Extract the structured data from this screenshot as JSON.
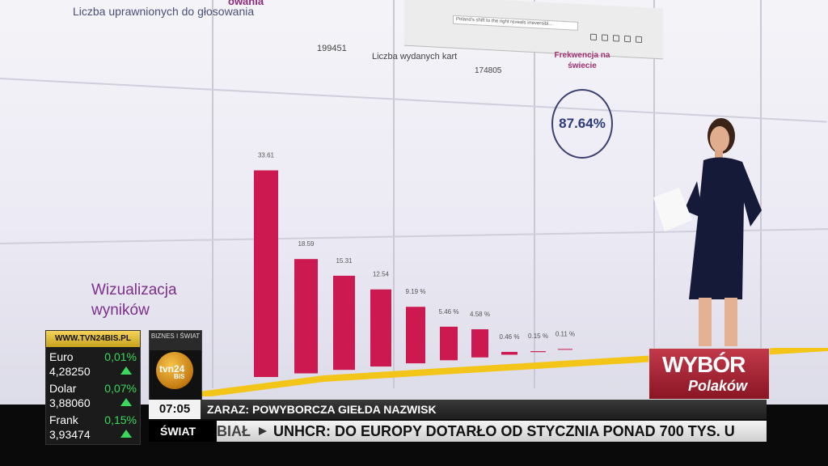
{
  "screen": {
    "header_fragment": "owania",
    "voters_label": "Liczba uprawnionych do głosowania",
    "voters_value": "199451",
    "ballots_label": "Liczba wydanych kart",
    "ballots_value": "174805",
    "turnout_label": "Frekwencja na świecie",
    "turnout_value": "87.64%",
    "viz_title": "Wizualizacja wyników",
    "browser_url": "Poland's shift to the right reveals irreversibl..."
  },
  "chart_data": {
    "type": "bar",
    "categories": [
      "",
      "",
      "",
      "",
      "",
      "",
      "",
      "",
      "",
      ""
    ],
    "values": [
      33.61,
      18.59,
      15.31,
      12.54,
      9.19,
      5.46,
      4.58,
      0.46,
      0.15,
      0.11
    ],
    "data_labels": [
      "33.61",
      "18.59",
      "15.31",
      "12.54",
      "9.19 %",
      "5.46 %",
      "4.58 %",
      "0.46 %",
      "0.15 %",
      "0.11 %"
    ],
    "color": "#cc1a50"
  },
  "markets": {
    "site": "WWW.TVN24BIS.PL",
    "items": [
      {
        "name": "Euro",
        "change": "0,01%",
        "value": "4,28250"
      },
      {
        "name": "Dolar",
        "change": "0,07%",
        "value": "3,88060"
      },
      {
        "name": "Frank",
        "change": "0,15%",
        "value": "3,93474"
      }
    ]
  },
  "logo": {
    "top": "BIZNES I ŚWIAT",
    "text": "tvn24",
    "sub": "BiS"
  },
  "ticker": {
    "clock": "07:05",
    "next": "ZARAZ: POWYBORCZA GIEŁDA NAZWISK",
    "section": "ŚWIAT",
    "crawl_prev": "BIAŁ",
    "crawl_text": "UNHCR: DO EUROPY DOTARŁO OD STYCZNIA PONAD 700 TYS. U"
  },
  "badge": {
    "title": "WYBÓR",
    "subtitle": "Polaków"
  }
}
